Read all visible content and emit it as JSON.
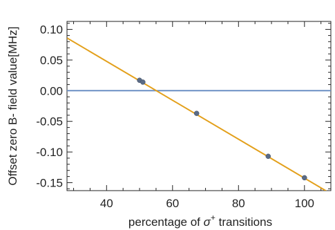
{
  "chart_data": {
    "type": "scatter",
    "xlabel_prefix": "percentage of ",
    "xlabel_symbol": "σ",
    "xlabel_sup": "+",
    "xlabel_suffix": " transitions",
    "ylabel": "Offset zero B- field value[MHz]",
    "xlim": [
      28,
      108
    ],
    "ylim": [
      -0.163,
      0.113
    ],
    "xticks": [
      40,
      60,
      80,
      100
    ],
    "xtick_labels": [
      "40",
      "60",
      "80",
      "100"
    ],
    "yticks": [
      0.1,
      0.05,
      0.0,
      -0.05,
      -0.1,
      -0.15
    ],
    "ytick_labels": [
      "0.10",
      "0.05",
      "0.00",
      "-0.05",
      "-0.10",
      "-0.15"
    ],
    "grid": false,
    "series": [
      {
        "points": [
          {
            "x": 50.0,
            "y": 0.017
          },
          {
            "x": 51.0,
            "y": 0.014
          },
          {
            "x": 67.3,
            "y": -0.037
          },
          {
            "x": 89.0,
            "y": -0.107
          },
          {
            "x": 100.0,
            "y": -0.142
          }
        ]
      }
    ],
    "fit_line": {
      "x": [
        28,
        108
      ],
      "y": [
        0.086,
        -0.168
      ]
    },
    "reference_line": {
      "y": 0.0
    },
    "colors": {
      "points": "#5a6b86",
      "fit_line": "#e3a01b",
      "reference_line": "#6b8fc4",
      "frame": "#222222"
    }
  }
}
